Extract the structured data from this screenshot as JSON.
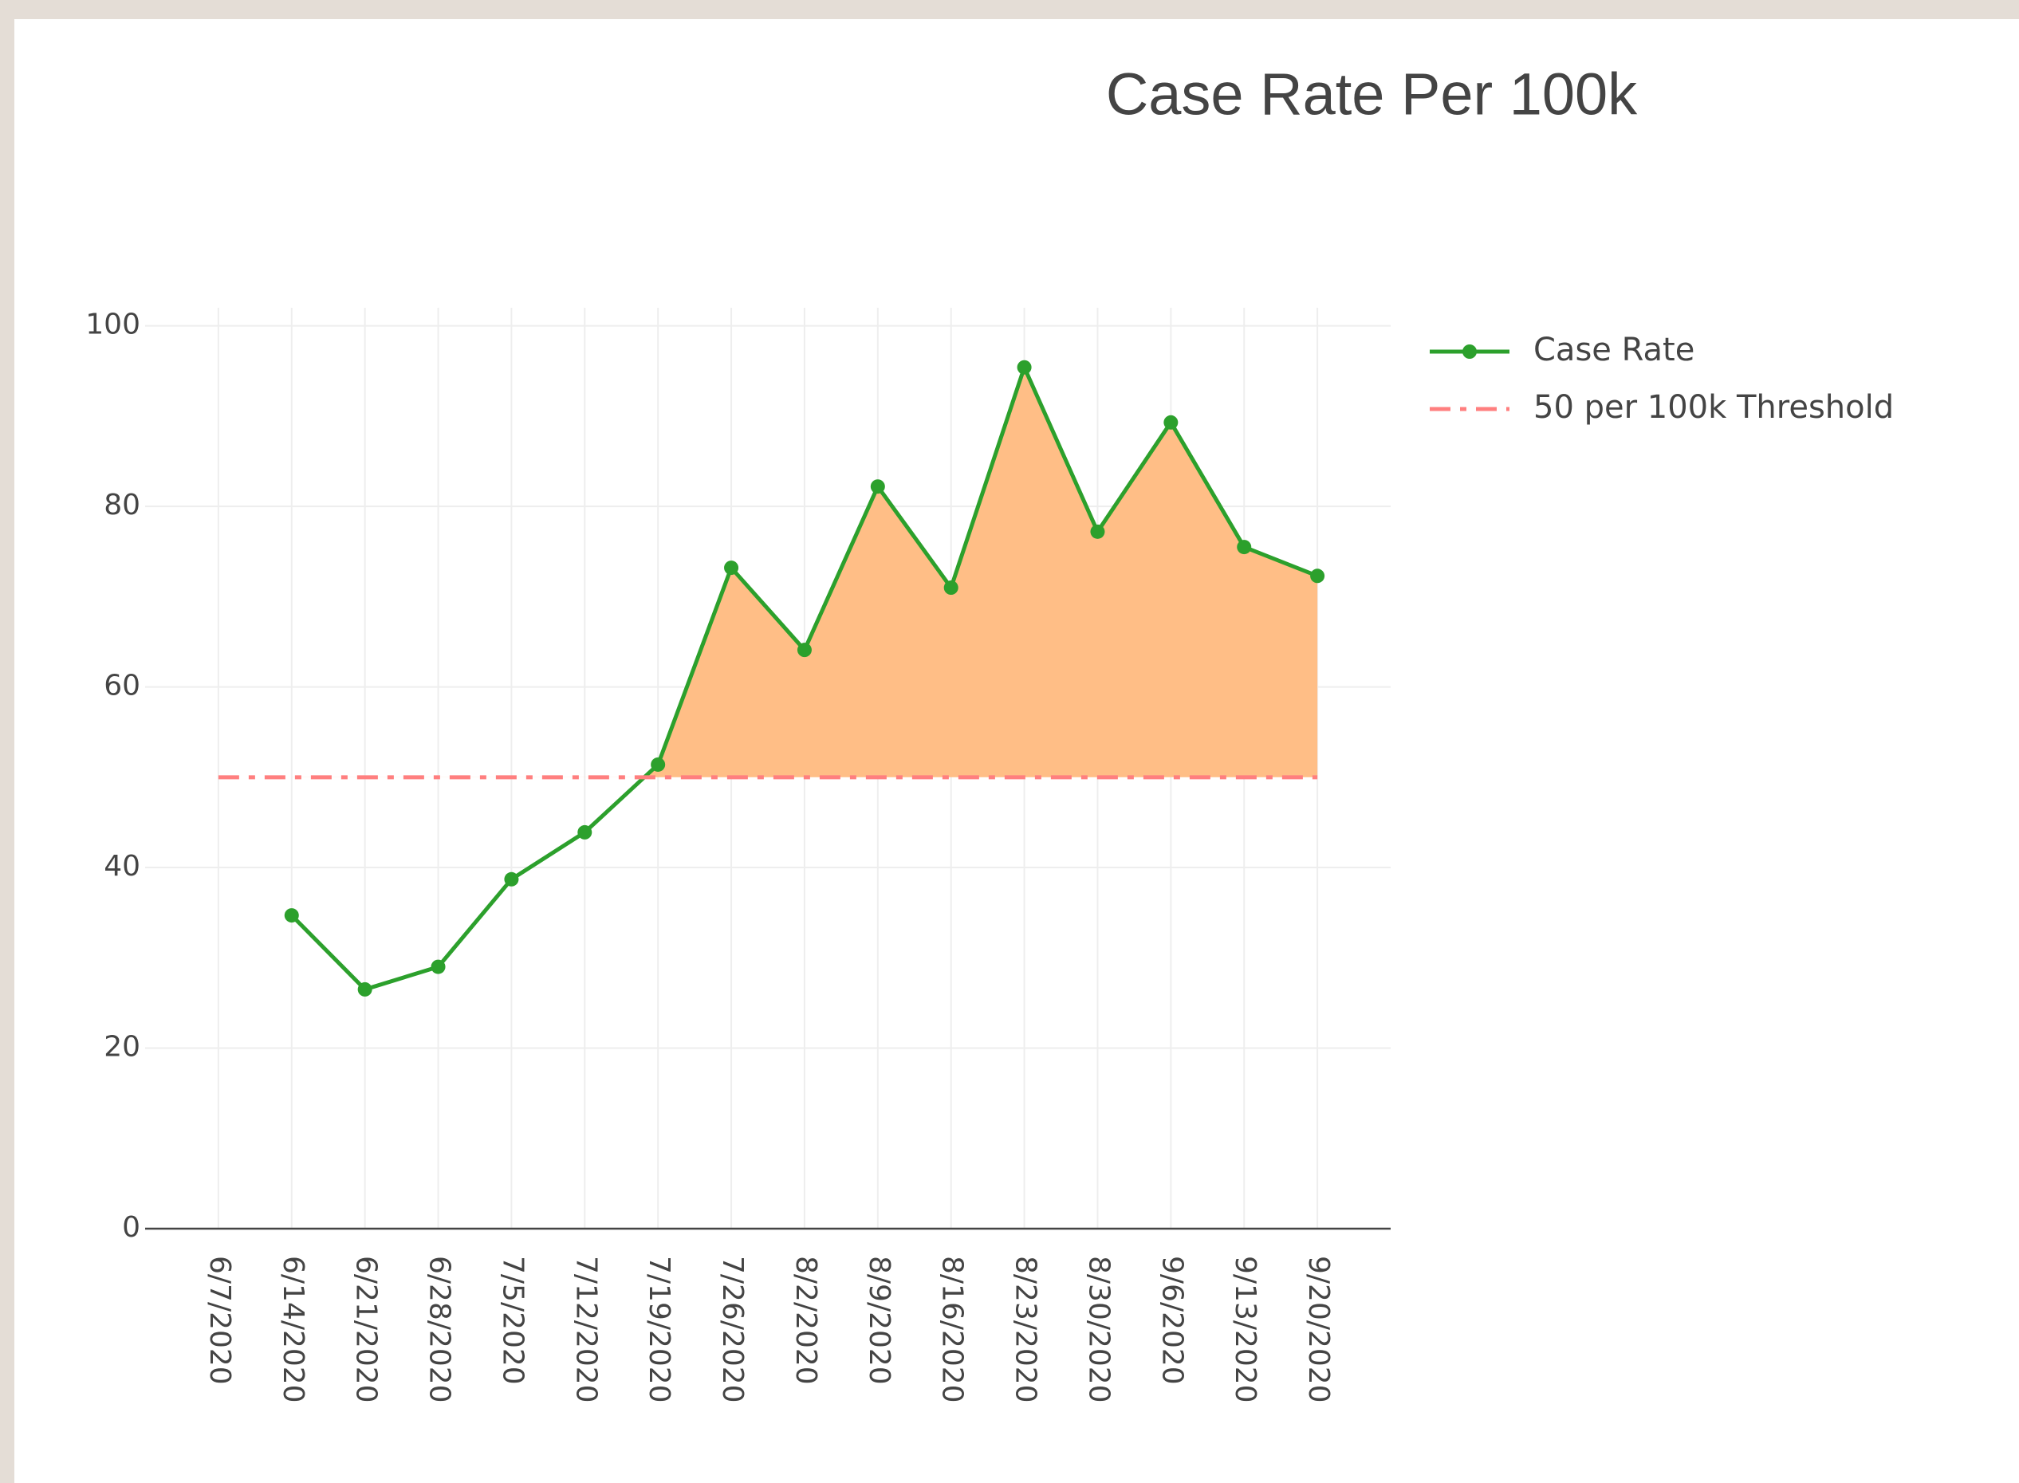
{
  "chart_data": {
    "type": "line",
    "title": "Case Rate Per 100k",
    "x": [
      "6/7/2020",
      "6/14/2020",
      "6/21/2020",
      "6/28/2020",
      "7/5/2020",
      "7/12/2020",
      "7/19/2020",
      "7/26/2020",
      "8/2/2020",
      "8/9/2020",
      "8/16/2020",
      "8/23/2020",
      "8/30/2020",
      "9/6/2020",
      "9/13/2020",
      "9/20/2020"
    ],
    "series": [
      {
        "name": "Case Rate",
        "color": "#2ca02c",
        "fill_color": "#ffbb80",
        "values": [
          null,
          34.7,
          26.5,
          29.0,
          38.7,
          43.9,
          51.4,
          73.2,
          64.1,
          82.2,
          71.0,
          95.4,
          77.2,
          89.3,
          75.5,
          72.3
        ]
      },
      {
        "name": "50 per 100k Threshold",
        "color": "#ff7f7f",
        "dash": "dashdot",
        "values": [
          50,
          50,
          50,
          50,
          50,
          50,
          50,
          50,
          50,
          50,
          50,
          50,
          50,
          50,
          50,
          50
        ]
      }
    ],
    "ylim": [
      0,
      102
    ],
    "yticks": [
      0,
      20,
      40,
      60,
      80,
      100
    ],
    "grid": true
  }
}
